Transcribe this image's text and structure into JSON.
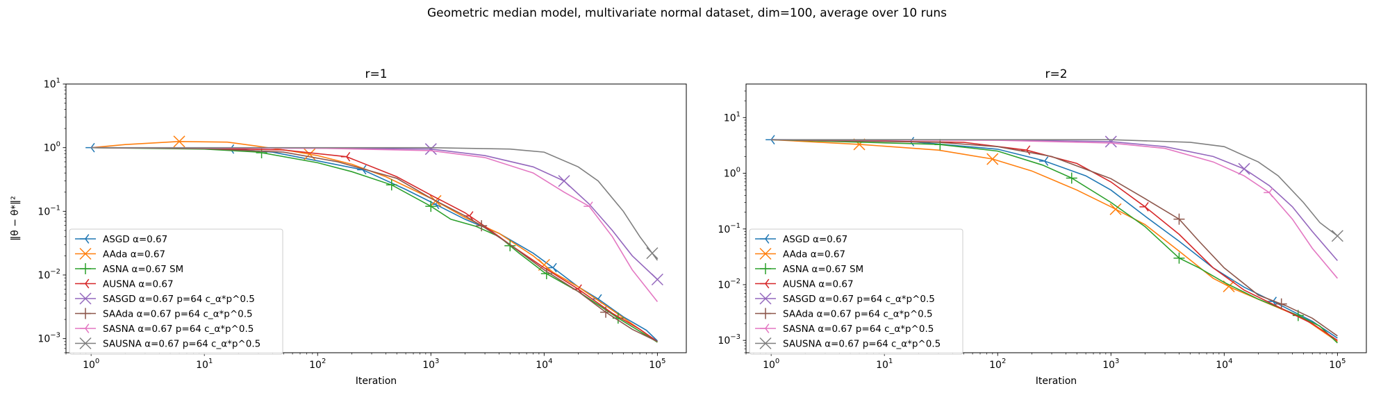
{
  "figure": {
    "suptitle": "Geometric median model, multivariate normal dataset, dim=100, average over 10 runs"
  },
  "chart_data": [
    {
      "type": "line",
      "title": "r=1",
      "xlabel": "Iteration",
      "ylabel": "‖θ − θ*‖²",
      "xscale": "log",
      "yscale": "log",
      "xlim": [
        0.6,
        180000
      ],
      "ylim": [
        0.0006,
        10
      ],
      "grid": false,
      "legend_position": "lower-left",
      "x_ticks": [
        {
          "value": 1,
          "mantissa": "10",
          "exp": "0"
        },
        {
          "value": 10,
          "mantissa": "10",
          "exp": "1"
        },
        {
          "value": 100,
          "mantissa": "10",
          "exp": "2"
        },
        {
          "value": 1000,
          "mantissa": "10",
          "exp": "3"
        },
        {
          "value": 10000,
          "mantissa": "10",
          "exp": "4"
        },
        {
          "value": 100000,
          "mantissa": "10",
          "exp": "5"
        }
      ],
      "y_ticks": [
        {
          "value": 0.001,
          "mantissa": "10",
          "exp": "−3"
        },
        {
          "value": 0.01,
          "mantissa": "10",
          "exp": "−2"
        },
        {
          "value": 0.1,
          "mantissa": "10",
          "exp": "−1"
        },
        {
          "value": 1,
          "mantissa": "10",
          "exp": "0"
        },
        {
          "value": 10,
          "mantissa": "10",
          "exp": "1"
        }
      ],
      "series": [
        {
          "name": "ASGD α=0.67",
          "color": "#1f77b4",
          "marker": "tri_left",
          "x": [
            1,
            5,
            17,
            40,
            100,
            250,
            600,
            1000,
            2000,
            4000,
            8000,
            12000,
            20000,
            30000,
            50000,
            80000,
            100000
          ],
          "y": [
            1.0,
            0.99,
            0.95,
            0.85,
            0.62,
            0.45,
            0.22,
            0.14,
            0.075,
            0.045,
            0.022,
            0.013,
            0.0065,
            0.0042,
            0.0022,
            0.00135,
            0.00092
          ],
          "markers_at": [
            1,
            17,
            250,
            1100,
            12000,
            30000
          ]
        },
        {
          "name": "AAda α=0.67",
          "color": "#ff7f0e",
          "marker": "x",
          "x": [
            1,
            2,
            6,
            16,
            30,
            60,
            100,
            200,
            400,
            1000,
            2000,
            4000,
            8000,
            12000,
            20000,
            40000,
            70000,
            100000
          ],
          "y": [
            1.0,
            1.12,
            1.25,
            1.22,
            1.05,
            0.88,
            0.75,
            0.55,
            0.35,
            0.16,
            0.08,
            0.045,
            0.02,
            0.011,
            0.0065,
            0.0028,
            0.0014,
            0.00088
          ],
          "markers_at": [
            6,
            85,
            1100,
            10000
          ]
        },
        {
          "name": "ASNA α=0.67 SM",
          "color": "#2ca02c",
          "marker": "plus",
          "x": [
            1,
            10,
            30,
            100,
            200,
            450,
            1000,
            1500,
            2500,
            4000,
            6000,
            10000,
            20000,
            45000,
            70000,
            100000
          ],
          "y": [
            1.0,
            0.95,
            0.85,
            0.58,
            0.42,
            0.26,
            0.12,
            0.075,
            0.058,
            0.04,
            0.022,
            0.011,
            0.0055,
            0.0021,
            0.0013,
            0.00088
          ],
          "markers_at": [
            32,
            450,
            1000,
            5000,
            10500,
            45000
          ]
        },
        {
          "name": "AUSNA α=0.67",
          "color": "#d62728",
          "marker": "tri_left",
          "x": [
            1,
            10,
            50,
            180,
            500,
            1000,
            2000,
            3000,
            5000,
            10000,
            20000,
            40000,
            70000,
            100000
          ],
          "y": [
            1.0,
            0.98,
            0.92,
            0.72,
            0.35,
            0.18,
            0.095,
            0.058,
            0.03,
            0.013,
            0.006,
            0.0025,
            0.0014,
            0.0009
          ],
          "markers_at": [
            180,
            2200,
            20000
          ]
        },
        {
          "name": "SASGD α=0.67 p=64 c_α*p^0.5",
          "color": "#9467bd",
          "marker": "x",
          "x": [
            1,
            100,
            1000,
            3000,
            8000,
            15000,
            25000,
            40000,
            60000,
            100000
          ],
          "y": [
            1.0,
            0.98,
            0.95,
            0.75,
            0.5,
            0.3,
            0.13,
            0.05,
            0.02,
            0.0085
          ],
          "markers_at": [
            1000,
            15000,
            100000
          ]
        },
        {
          "name": "SAAda α=0.67 p=64 c_α*p^0.5",
          "color": "#8c564b",
          "marker": "plus",
          "x": [
            1,
            10,
            50,
            150,
            500,
            1000,
            2000,
            3000,
            5000,
            10000,
            20000,
            35000,
            60000,
            100000
          ],
          "y": [
            1.0,
            0.97,
            0.85,
            0.6,
            0.33,
            0.16,
            0.085,
            0.055,
            0.03,
            0.012,
            0.0055,
            0.0026,
            0.0014,
            0.0009
          ],
          "markers_at": [
            2800,
            35000
          ]
        },
        {
          "name": "SASNA α=0.67 p=64 c_α*p^0.5",
          "color": "#e377c2",
          "marker": "tri_left",
          "x": [
            1,
            100,
            1000,
            3000,
            8000,
            15000,
            25000,
            40000,
            60000,
            100000
          ],
          "y": [
            1.0,
            0.98,
            0.9,
            0.7,
            0.4,
            0.2,
            0.12,
            0.04,
            0.012,
            0.0038
          ],
          "markers_at": [
            25000
          ]
        },
        {
          "name": "SAUSNA α=0.67 p=64 c_α*p^0.5",
          "color": "#7f7f7f",
          "marker": "x",
          "x": [
            1,
            1000,
            5000,
            10000,
            20000,
            30000,
            50000,
            70000,
            90000,
            100000
          ],
          "y": [
            1.0,
            1.0,
            0.95,
            0.85,
            0.5,
            0.3,
            0.1,
            0.04,
            0.022,
            0.017
          ],
          "markers_at": [
            90000
          ]
        }
      ]
    },
    {
      "type": "line",
      "title": "r=2",
      "xlabel": "Iteration",
      "ylabel": "",
      "xscale": "log",
      "yscale": "log",
      "xlim": [
        0.6,
        180000
      ],
      "ylim": [
        0.0006,
        40
      ],
      "grid": false,
      "legend_position": "lower-left",
      "x_ticks": [
        {
          "value": 1,
          "mantissa": "10",
          "exp": "0"
        },
        {
          "value": 10,
          "mantissa": "10",
          "exp": "1"
        },
        {
          "value": 100,
          "mantissa": "10",
          "exp": "2"
        },
        {
          "value": 1000,
          "mantissa": "10",
          "exp": "3"
        },
        {
          "value": 10000,
          "mantissa": "10",
          "exp": "4"
        },
        {
          "value": 100000,
          "mantissa": "10",
          "exp": "5"
        }
      ],
      "y_ticks": [
        {
          "value": 0.001,
          "mantissa": "10",
          "exp": "−3"
        },
        {
          "value": 0.01,
          "mantissa": "10",
          "exp": "−2"
        },
        {
          "value": 0.1,
          "mantissa": "10",
          "exp": "−1"
        },
        {
          "value": 1,
          "mantissa": "10",
          "exp": "0"
        },
        {
          "value": 10,
          "mantissa": "10",
          "exp": "1"
        }
      ],
      "series": [
        {
          "name": "ASGD α=0.67",
          "color": "#1f77b4",
          "marker": "tri_left",
          "x": [
            1,
            17,
            100,
            250,
            600,
            1000,
            2000,
            4000,
            8000,
            15000,
            30000,
            60000,
            100000
          ],
          "y": [
            4.0,
            3.7,
            2.7,
            1.7,
            0.9,
            0.5,
            0.17,
            0.06,
            0.02,
            0.009,
            0.0045,
            0.0022,
            0.0011
          ],
          "markers_at": [
            1,
            17,
            260,
            27000
          ]
        },
        {
          "name": "AAda α=0.67",
          "color": "#ff7f0e",
          "marker": "x",
          "x": [
            1,
            6,
            30,
            90,
            200,
            500,
            1000,
            2000,
            4000,
            8000,
            12000,
            25000,
            50000,
            100000
          ],
          "y": [
            4.0,
            3.3,
            2.6,
            1.8,
            1.1,
            0.5,
            0.25,
            0.12,
            0.04,
            0.013,
            0.0085,
            0.0045,
            0.0025,
            0.00095
          ],
          "markers_at": [
            6,
            90,
            1100,
            11000
          ]
        },
        {
          "name": "ASNA α=0.67 SM",
          "color": "#2ca02c",
          "marker": "plus",
          "x": [
            1,
            30,
            100,
            250,
            450,
            1000,
            2000,
            4000,
            6000,
            10000,
            20000,
            45000,
            70000,
            100000
          ],
          "y": [
            4.0,
            3.3,
            2.5,
            1.4,
            0.82,
            0.3,
            0.11,
            0.03,
            0.02,
            0.011,
            0.0055,
            0.0028,
            0.0018,
            0.0009
          ],
          "markers_at": [
            31,
            450,
            4000,
            45000
          ]
        },
        {
          "name": "AUSNA α=0.67",
          "color": "#d62728",
          "marker": "tri_left",
          "x": [
            1,
            50,
            180,
            500,
            1000,
            2000,
            4000,
            8000,
            15000,
            30000,
            60000,
            100000
          ],
          "y": [
            4.0,
            3.6,
            2.6,
            1.5,
            0.7,
            0.25,
            0.08,
            0.02,
            0.008,
            0.004,
            0.002,
            0.001
          ],
          "markers_at": [
            180,
            2000
          ]
        },
        {
          "name": "SASGD α=0.67 p=64 c_α*p^0.5",
          "color": "#9467bd",
          "marker": "x",
          "x": [
            1,
            100,
            1000,
            3000,
            8000,
            15000,
            25000,
            40000,
            60000,
            100000
          ],
          "y": [
            4.0,
            3.95,
            3.7,
            3.0,
            2.0,
            1.2,
            0.6,
            0.25,
            0.09,
            0.027
          ],
          "markers_at": [
            1000,
            15000
          ]
        },
        {
          "name": "SAAda α=0.67 p=64 c_α*p^0.5",
          "color": "#8c564b",
          "marker": "plus",
          "x": [
            1,
            30,
            100,
            300,
            1000,
            2000,
            4000,
            6000,
            10000,
            20000,
            35000,
            60000,
            100000
          ],
          "y": [
            4.0,
            3.6,
            3.0,
            2.0,
            0.8,
            0.35,
            0.15,
            0.06,
            0.02,
            0.0065,
            0.0042,
            0.0025,
            0.0012
          ],
          "markers_at": [
            4000,
            32000
          ]
        },
        {
          "name": "SASNA α=0.67 p=64 c_α*p^0.5",
          "color": "#e377c2",
          "marker": "tri_left",
          "x": [
            1,
            100,
            1000,
            3000,
            8000,
            15000,
            25000,
            40000,
            60000,
            100000
          ],
          "y": [
            4.0,
            3.9,
            3.5,
            2.8,
            1.6,
            0.9,
            0.45,
            0.15,
            0.045,
            0.013
          ],
          "markers_at": [
            25000
          ]
        },
        {
          "name": "SAUSNA α=0.67 p=64 c_α*p^0.5",
          "color": "#7f7f7f",
          "marker": "x",
          "x": [
            1,
            1000,
            5000,
            10000,
            20000,
            30000,
            50000,
            70000,
            100000
          ],
          "y": [
            4.0,
            4.0,
            3.6,
            3.0,
            1.6,
            0.9,
            0.3,
            0.13,
            0.075
          ],
          "markers_at": [
            100000
          ]
        }
      ]
    }
  ]
}
